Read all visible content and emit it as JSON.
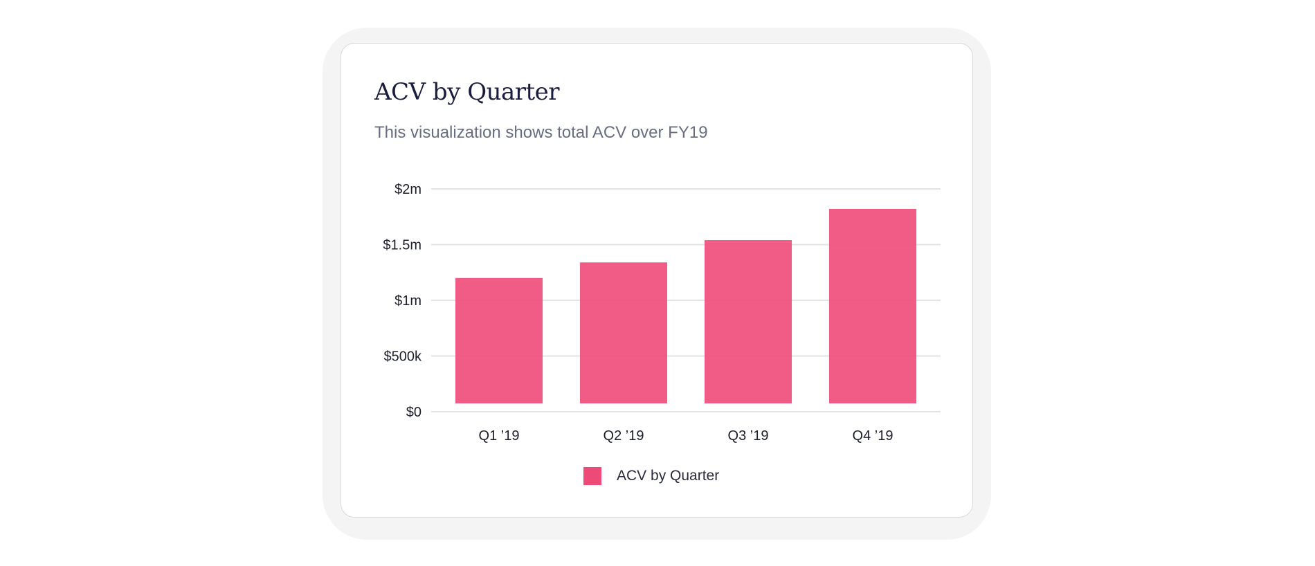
{
  "card": {
    "title": "ACV by Quarter",
    "subtitle": "This visualization shows total ACV over FY19"
  },
  "legend": {
    "label": "ACV by Quarter"
  },
  "colors": {
    "bar": "#ee4a78",
    "grid": "#e3e3e6",
    "title": "#1b1d3f",
    "subtitle": "#6a6d82"
  },
  "chart_data": {
    "type": "bar",
    "title": "ACV by Quarter",
    "subtitle": "This visualization shows total ACV over FY19",
    "xlabel": "",
    "ylabel": "",
    "categories": [
      "Q1 ’19",
      "Q2 ’19",
      "Q3 ’19",
      "Q4 ’19"
    ],
    "series": [
      {
        "name": "ACV by Quarter",
        "values": [
          1200000,
          1340000,
          1540000,
          1820000
        ]
      }
    ],
    "ylim": [
      0,
      2000000
    ],
    "yticks": [
      0,
      500000,
      1000000,
      1500000,
      2000000
    ],
    "ytick_labels": [
      "$0",
      "$500k",
      "$1m",
      "$1.5m",
      "$2m"
    ],
    "grid": true,
    "legend_position": "bottom-center"
  }
}
